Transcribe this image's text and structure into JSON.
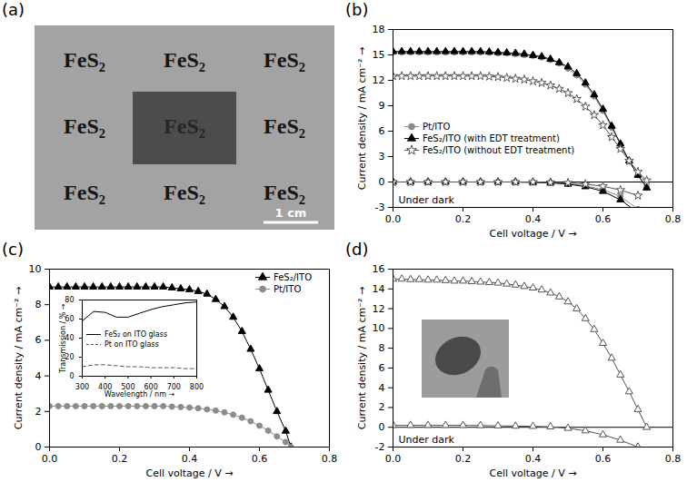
{
  "photo": {
    "panel": "(a)",
    "texts": [
      "FeS₂",
      "FeS₂",
      "FeS₂",
      "FeS₂",
      "FeS₂",
      "FeS₂",
      "FeS₂",
      "FeS₂",
      "FeS₂"
    ],
    "scale_bar": "1 cm"
  },
  "chart_data": [
    {
      "panel": "(b)",
      "type": "line",
      "x_label": "Cell voltage / V →",
      "y_label": "Current density / mA cm⁻² →",
      "xlim": [
        0,
        0.8
      ],
      "xticks": [
        {
          "value": 0,
          "label": "0.0"
        },
        0.2,
        0.4,
        0.6,
        0.8
      ],
      "ylim": [
        -3,
        18
      ],
      "yticks": [
        -3,
        0,
        3,
        6,
        9,
        12,
        15,
        18
      ],
      "legend": "left",
      "annotations": [
        "Under dark"
      ],
      "hline": 0,
      "x": [
        0,
        0.025,
        0.05,
        0.075,
        0.1,
        0.125,
        0.15,
        0.175,
        0.2,
        0.225,
        0.25,
        0.275,
        0.3,
        0.325,
        0.35,
        0.375,
        0.4,
        0.425,
        0.45,
        0.475,
        0.5,
        0.525,
        0.55,
        0.575,
        0.6,
        0.625,
        0.65,
        0.675,
        0.7,
        0.725
      ],
      "dark_x": [
        0,
        0.05,
        0.1,
        0.15,
        0.2,
        0.25,
        0.3,
        0.35,
        0.4,
        0.45,
        0.5,
        0.55,
        0.6,
        0.65,
        0.7
      ],
      "series": [
        {
          "name": "Pt/ITO",
          "color": "#8c8c8c",
          "marker": "filled-circle",
          "line_style": "solid",
          "values": [
            15.3,
            15.3,
            15.3,
            15.3,
            15.3,
            15.3,
            15.3,
            15.3,
            15.3,
            15.3,
            15.3,
            15.25,
            15.2,
            15.2,
            15.1,
            15.0,
            14.9,
            14.7,
            14.4,
            14.0,
            13.4,
            12.6,
            11.5,
            10.1,
            8.4,
            6.4,
            4.4,
            2.4,
            0.8,
            -0.6
          ],
          "dark_values": [
            0,
            0,
            0,
            0,
            0,
            0,
            0,
            0,
            -0.05,
            -0.1,
            -0.2,
            -0.45,
            -0.9,
            -1.7,
            -3.2
          ]
        },
        {
          "name": "FeS₂/ITO (with EDT treatment)",
          "color": "#000000",
          "marker": "filled-triangle",
          "line_style": "solid",
          "values": [
            15.4,
            15.4,
            15.4,
            15.4,
            15.4,
            15.4,
            15.4,
            15.4,
            15.4,
            15.4,
            15.4,
            15.35,
            15.3,
            15.25,
            15.2,
            15.1,
            14.95,
            14.8,
            14.5,
            14.1,
            13.6,
            12.8,
            11.7,
            10.3,
            8.6,
            6.6,
            4.5,
            2.5,
            0.8,
            -0.7
          ],
          "dark_values": [
            0,
            0,
            0,
            0,
            0,
            0,
            0,
            0,
            -0.05,
            -0.1,
            -0.25,
            -0.55,
            -1.1,
            -2.1,
            -3.6
          ]
        },
        {
          "name": "FeS₂/ITO (without EDT treatment)",
          "color": "#555555",
          "marker": "open-star",
          "line_style": "solid",
          "values": [
            12.5,
            12.5,
            12.5,
            12.5,
            12.5,
            12.5,
            12.5,
            12.5,
            12.5,
            12.5,
            12.5,
            12.45,
            12.4,
            12.3,
            12.2,
            12.1,
            11.9,
            11.7,
            11.4,
            11.0,
            10.5,
            9.8,
            8.9,
            7.9,
            6.7,
            5.3,
            3.9,
            2.5,
            1.2,
            0.2
          ],
          "dark_values": [
            0,
            0,
            0,
            0,
            0,
            0,
            0,
            0,
            0,
            -0.05,
            -0.1,
            -0.25,
            -0.5,
            -0.95,
            -1.6
          ]
        }
      ]
    },
    {
      "panel": "(c)",
      "type": "line",
      "x_label": "Cell voltage / V →",
      "y_label": "Current density / mA cm⁻² →",
      "xlim": [
        0,
        0.8
      ],
      "xticks": [
        {
          "value": 0,
          "label": "0.0"
        },
        0.2,
        0.4,
        0.6,
        0.8
      ],
      "ylim": [
        0,
        10
      ],
      "yticks": [
        0,
        2,
        4,
        6,
        8,
        10
      ],
      "legend": "upper-right",
      "x": [
        0,
        0.025,
        0.05,
        0.075,
        0.1,
        0.125,
        0.15,
        0.175,
        0.2,
        0.225,
        0.25,
        0.275,
        0.3,
        0.325,
        0.35,
        0.375,
        0.4,
        0.425,
        0.45,
        0.475,
        0.5,
        0.525,
        0.55,
        0.575,
        0.6,
        0.625,
        0.65,
        0.675,
        0.69
      ],
      "series": [
        {
          "name": "FeS₂/ITO",
          "color": "#000000",
          "marker": "filled-triangle",
          "line_style": "solid",
          "values": [
            9.0,
            9.0,
            9.0,
            9.0,
            9.0,
            9.0,
            9.0,
            9.0,
            9.0,
            9.0,
            9.0,
            9.0,
            9.0,
            9.0,
            8.95,
            8.9,
            8.85,
            8.75,
            8.6,
            8.3,
            7.9,
            7.3,
            6.5,
            5.5,
            4.4,
            3.2,
            2.0,
            0.9,
            0
          ]
        },
        {
          "name": "Pt/ITO",
          "color": "#8c8c8c",
          "marker": "filled-circle",
          "line_style": "solid",
          "values": [
            2.3,
            2.3,
            2.3,
            2.3,
            2.3,
            2.3,
            2.3,
            2.3,
            2.3,
            2.3,
            2.3,
            2.3,
            2.3,
            2.3,
            2.27,
            2.25,
            2.22,
            2.18,
            2.12,
            2.05,
            1.95,
            1.82,
            1.65,
            1.45,
            1.2,
            0.92,
            0.6,
            0.28,
            0
          ]
        }
      ],
      "inset": {
        "type": "line",
        "x_label": "Wavelength / nm →",
        "y_label": "Transmission / % →",
        "xlim": [
          300,
          800
        ],
        "xticks": [
          300,
          400,
          500,
          600,
          700,
          800
        ],
        "ylim": [
          0,
          80
        ],
        "yticks": [
          0,
          20,
          40,
          60,
          80
        ],
        "legend": "left",
        "x": [
          300,
          350,
          400,
          450,
          500,
          550,
          600,
          650,
          700,
          750,
          800
        ],
        "series": [
          {
            "name": "FeS₂ on ITO glass",
            "color": "#000000",
            "line_style": "solid",
            "values": [
              58,
              68,
              67,
              62,
              62,
              66,
              70,
              73,
              75,
              77,
              78
            ]
          },
          {
            "name": "Pt on ITO glass",
            "color": "#555555",
            "line_style": "dashed",
            "values": [
              10,
              12,
              12,
              11,
              10,
              10,
              9,
              9,
              9,
              8,
              8
            ]
          }
        ]
      }
    },
    {
      "panel": "(d)",
      "type": "line",
      "x_label": "Cell voltage / V →",
      "y_label": "Current density / mA cm⁻² →",
      "xlim": [
        0,
        0.8
      ],
      "xticks": [
        {
          "value": 0,
          "label": "0.0"
        },
        0.2,
        0.4,
        0.6,
        0.8
      ],
      "ylim": [
        -2,
        16
      ],
      "yticks": [
        -2,
        0,
        2,
        4,
        6,
        8,
        10,
        12,
        14,
        16
      ],
      "annotations": [
        "Under dark"
      ],
      "hline": 0,
      "x": [
        0,
        0.025,
        0.05,
        0.075,
        0.1,
        0.125,
        0.15,
        0.175,
        0.2,
        0.225,
        0.25,
        0.275,
        0.3,
        0.325,
        0.35,
        0.375,
        0.4,
        0.425,
        0.45,
        0.475,
        0.5,
        0.525,
        0.55,
        0.575,
        0.6,
        0.625,
        0.65,
        0.675,
        0.7,
        0.725
      ],
      "dark_x": [
        0,
        0.05,
        0.1,
        0.15,
        0.2,
        0.25,
        0.3,
        0.35,
        0.4,
        0.45,
        0.5,
        0.55,
        0.6,
        0.65,
        0.7
      ],
      "series": [
        {
          "color": "#555555",
          "marker": "open-triangle",
          "line_style": "solid",
          "values": [
            15.0,
            15.0,
            14.95,
            14.95,
            14.9,
            14.9,
            14.85,
            14.8,
            14.8,
            14.75,
            14.7,
            14.65,
            14.6,
            14.5,
            14.4,
            14.25,
            14.1,
            13.9,
            13.6,
            13.2,
            12.7,
            12.0,
            11.0,
            9.9,
            8.5,
            7.0,
            5.3,
            3.6,
            1.8,
            0.0
          ],
          "dark_values": [
            0.2,
            0.2,
            0.2,
            0.2,
            0.2,
            0.18,
            0.15,
            0.12,
            0.1,
            0.05,
            -0.1,
            -0.35,
            -0.75,
            -1.3,
            -2.0
          ]
        }
      ]
    }
  ]
}
